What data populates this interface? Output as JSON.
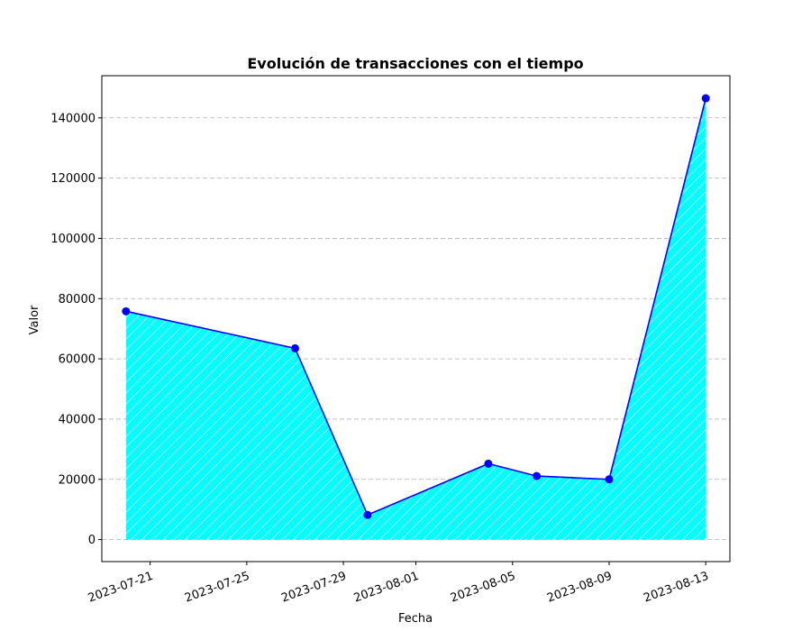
{
  "chart_data": {
    "type": "area",
    "title": "Evolución de transacciones con el tiempo",
    "xlabel": "Fecha",
    "ylabel": "Valor",
    "x": [
      "2023-07-20",
      "2023-07-27",
      "2023-07-30",
      "2023-08-04",
      "2023-08-06",
      "2023-08-09",
      "2023-08-13"
    ],
    "values": [
      75800,
      63500,
      8200,
      25200,
      21100,
      20000,
      146500
    ],
    "x_ticks": [
      "2023-07-21",
      "2023-07-25",
      "2023-07-29",
      "2023-08-01",
      "2023-08-05",
      "2023-08-09",
      "2023-08-13"
    ],
    "y_ticks": [
      0,
      20000,
      40000,
      60000,
      80000,
      100000,
      120000,
      140000
    ],
    "xlim": [
      "2023-07-19",
      "2023-08-14"
    ],
    "ylim": [
      -7300,
      154000
    ],
    "grid": "y-dashed",
    "line_color": "#0000ff",
    "fill_color": "#00ffff",
    "hatch": "diagonal-white"
  }
}
